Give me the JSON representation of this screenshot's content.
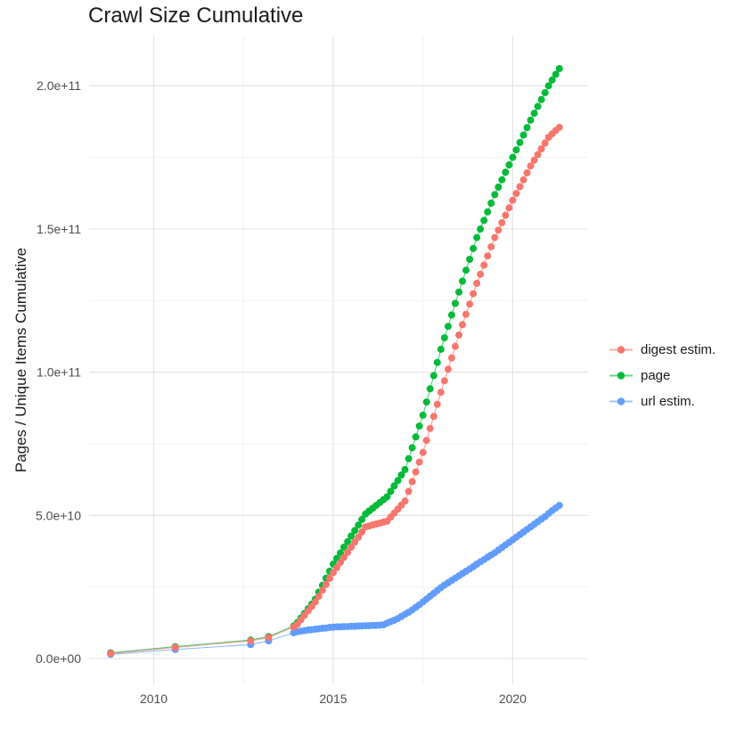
{
  "page": {
    "title": "Crawl Size Cumulative"
  },
  "axes": {
    "y_title": "Pages / Unique Items Cumulative",
    "x_ticks": [
      {
        "label": "2010",
        "value": 2010
      },
      {
        "label": "2015",
        "value": 2015
      },
      {
        "label": "2020",
        "value": 2020
      }
    ],
    "y_ticks": [
      {
        "label": "0.0e+00",
        "value": 0
      },
      {
        "label": "5.0e+10",
        "value": 50
      },
      {
        "label": "1.0e+11",
        "value": 100
      },
      {
        "label": "1.5e+11",
        "value": 150
      },
      {
        "label": "2.0e+11",
        "value": 200
      }
    ],
    "x_minor": [
      2012.5,
      2017.5
    ],
    "y_minor": [
      25,
      75,
      125,
      175
    ]
  },
  "legend": [
    {
      "label": "digest estim.",
      "color": "#F8766D"
    },
    {
      "label": "page",
      "color": "#00BA38"
    },
    {
      "label": "url estim.",
      "color": "#619CFF"
    }
  ],
  "colors": {
    "digest_estim": "#F8766D",
    "page": "#00BA38",
    "url_estim": "#619CFF",
    "grid_major": "#e3e3e3",
    "grid_minor": "#f1f1f1",
    "tick_label": "#4d4d4d"
  },
  "chart_data": {
    "type": "scatter",
    "title": "Crawl Size Cumulative",
    "xlabel": "",
    "ylabel": "Pages / Unique Items Cumulative",
    "x_unit": "year",
    "value_unit": "pages, in billions (1e9)",
    "xlim": [
      2008.2,
      2022.1
    ],
    "ylim_billions": [
      -9,
      217.5
    ],
    "grid": true,
    "legend_position": "right",
    "series": [
      {
        "name": "digest estim.",
        "color": "#F8766D",
        "points": [
          [
            2008.8,
            1.8
          ],
          [
            2010.6,
            3.9
          ],
          [
            2012.7,
            6.2
          ],
          [
            2013.2,
            7.4
          ],
          [
            2013.9,
            11.0
          ],
          [
            2014.0,
            12.0
          ],
          [
            2014.1,
            13.6
          ],
          [
            2014.2,
            15.1
          ],
          [
            2014.3,
            16.7
          ],
          [
            2014.4,
            18.2
          ],
          [
            2014.5,
            19.8
          ],
          [
            2014.6,
            21.8
          ],
          [
            2014.7,
            23.9
          ],
          [
            2014.8,
            25.9
          ],
          [
            2014.9,
            28.0
          ],
          [
            2015.0,
            30.0
          ],
          [
            2015.1,
            31.8
          ],
          [
            2015.2,
            33.6
          ],
          [
            2015.3,
            35.3
          ],
          [
            2015.4,
            37.1
          ],
          [
            2015.5,
            38.9
          ],
          [
            2015.6,
            40.7
          ],
          [
            2015.7,
            42.4
          ],
          [
            2015.8,
            44.2
          ],
          [
            2015.9,
            46.0
          ],
          [
            2016.0,
            46.3
          ],
          [
            2016.1,
            46.7
          ],
          [
            2016.2,
            47.0
          ],
          [
            2016.3,
            47.3
          ],
          [
            2016.4,
            47.7
          ],
          [
            2016.5,
            48.0
          ],
          [
            2016.6,
            49.4
          ],
          [
            2016.7,
            50.8
          ],
          [
            2016.8,
            52.2
          ],
          [
            2016.9,
            53.6
          ],
          [
            2017.0,
            55.0
          ],
          [
            2017.1,
            58.4
          ],
          [
            2017.2,
            61.8
          ],
          [
            2017.3,
            65.2
          ],
          [
            2017.4,
            68.6
          ],
          [
            2017.5,
            72.0
          ],
          [
            2017.6,
            76.2
          ],
          [
            2017.7,
            80.4
          ],
          [
            2017.8,
            84.6
          ],
          [
            2017.9,
            88.8
          ],
          [
            2018.0,
            93.0
          ],
          [
            2018.1,
            97.0
          ],
          [
            2018.2,
            101.0
          ],
          [
            2018.3,
            105.0
          ],
          [
            2018.4,
            109.0
          ],
          [
            2018.5,
            113.0
          ],
          [
            2018.6,
            116.6
          ],
          [
            2018.7,
            120.2
          ],
          [
            2018.8,
            123.8
          ],
          [
            2018.9,
            127.4
          ],
          [
            2019.0,
            131.0
          ],
          [
            2019.1,
            134.2
          ],
          [
            2019.2,
            137.4
          ],
          [
            2019.3,
            140.6
          ],
          [
            2019.4,
            143.8
          ],
          [
            2019.5,
            147.0
          ],
          [
            2019.6,
            149.6
          ],
          [
            2019.7,
            152.2
          ],
          [
            2019.8,
            154.8
          ],
          [
            2019.9,
            157.4
          ],
          [
            2020.0,
            160.0
          ],
          [
            2020.1,
            162.4
          ],
          [
            2020.2,
            164.8
          ],
          [
            2020.3,
            167.2
          ],
          [
            2020.4,
            169.6
          ],
          [
            2020.5,
            172.0
          ],
          [
            2020.6,
            174.0
          ],
          [
            2020.7,
            176.0
          ],
          [
            2020.8,
            178.0
          ],
          [
            2020.9,
            180.0
          ],
          [
            2021.0,
            182.0
          ],
          [
            2021.1,
            183.2
          ],
          [
            2021.2,
            184.4
          ],
          [
            2021.3,
            185.5
          ]
        ]
      },
      {
        "name": "page",
        "color": "#00BA38",
        "points": [
          [
            2008.8,
            2.0
          ],
          [
            2010.6,
            4.2
          ],
          [
            2012.7,
            6.5
          ],
          [
            2013.2,
            7.7
          ],
          [
            2013.9,
            11.4
          ],
          [
            2014.0,
            12.6
          ],
          [
            2014.1,
            14.2
          ],
          [
            2014.2,
            15.8
          ],
          [
            2014.3,
            17.4
          ],
          [
            2014.4,
            19.0
          ],
          [
            2014.5,
            20.7
          ],
          [
            2014.6,
            23.2
          ],
          [
            2014.7,
            25.6
          ],
          [
            2014.8,
            28.1
          ],
          [
            2014.9,
            30.5
          ],
          [
            2015.0,
            33.0
          ],
          [
            2015.1,
            35.0
          ],
          [
            2015.2,
            36.9
          ],
          [
            2015.3,
            38.9
          ],
          [
            2015.4,
            40.8
          ],
          [
            2015.5,
            42.8
          ],
          [
            2015.6,
            44.7
          ],
          [
            2015.7,
            46.6
          ],
          [
            2015.8,
            48.6
          ],
          [
            2015.9,
            50.5
          ],
          [
            2016.0,
            51.5
          ],
          [
            2016.1,
            52.5
          ],
          [
            2016.2,
            53.5
          ],
          [
            2016.3,
            54.5
          ],
          [
            2016.4,
            55.5
          ],
          [
            2016.5,
            56.5
          ],
          [
            2016.6,
            58.4
          ],
          [
            2016.7,
            60.3
          ],
          [
            2016.8,
            62.2
          ],
          [
            2016.9,
            64.1
          ],
          [
            2017.0,
            66.0
          ],
          [
            2017.1,
            69.8
          ],
          [
            2017.2,
            73.6
          ],
          [
            2017.3,
            77.4
          ],
          [
            2017.4,
            81.2
          ],
          [
            2017.5,
            85.0
          ],
          [
            2017.6,
            89.6
          ],
          [
            2017.7,
            94.2
          ],
          [
            2017.8,
            98.8
          ],
          [
            2017.9,
            103.4
          ],
          [
            2018.0,
            108.0
          ],
          [
            2018.1,
            112.0
          ],
          [
            2018.2,
            116.0
          ],
          [
            2018.3,
            120.0
          ],
          [
            2018.4,
            124.0
          ],
          [
            2018.5,
            128.0
          ],
          [
            2018.6,
            131.8
          ],
          [
            2018.7,
            135.6
          ],
          [
            2018.8,
            139.4
          ],
          [
            2018.9,
            143.2
          ],
          [
            2019.0,
            147.0
          ],
          [
            2019.1,
            150.0
          ],
          [
            2019.2,
            153.0
          ],
          [
            2019.3,
            156.0
          ],
          [
            2019.4,
            159.0
          ],
          [
            2019.5,
            162.0
          ],
          [
            2019.6,
            164.6
          ],
          [
            2019.7,
            167.2
          ],
          [
            2019.8,
            169.8
          ],
          [
            2019.9,
            172.4
          ],
          [
            2020.0,
            175.0
          ],
          [
            2020.1,
            177.6
          ],
          [
            2020.2,
            180.2
          ],
          [
            2020.3,
            182.8
          ],
          [
            2020.4,
            185.4
          ],
          [
            2020.5,
            188.0
          ],
          [
            2020.6,
            190.4
          ],
          [
            2020.7,
            192.8
          ],
          [
            2020.8,
            195.2
          ],
          [
            2020.9,
            197.6
          ],
          [
            2021.0,
            200.0
          ],
          [
            2021.1,
            202.0
          ],
          [
            2021.2,
            204.0
          ],
          [
            2021.3,
            206.0
          ]
        ]
      },
      {
        "name": "url estim.",
        "color": "#619CFF",
        "points": [
          [
            2008.8,
            1.5
          ],
          [
            2010.6,
            3.2
          ],
          [
            2012.7,
            4.9
          ],
          [
            2013.2,
            6.2
          ],
          [
            2013.9,
            9.0
          ],
          [
            2014.0,
            9.4
          ],
          [
            2014.1,
            9.6
          ],
          [
            2014.2,
            9.8
          ],
          [
            2014.3,
            10.0
          ],
          [
            2014.4,
            10.1
          ],
          [
            2014.5,
            10.3
          ],
          [
            2014.6,
            10.4
          ],
          [
            2014.7,
            10.6
          ],
          [
            2014.8,
            10.7
          ],
          [
            2014.9,
            10.9
          ],
          [
            2015.0,
            11.0
          ],
          [
            2015.1,
            11.1
          ],
          [
            2015.2,
            11.1
          ],
          [
            2015.3,
            11.2
          ],
          [
            2015.4,
            11.2
          ],
          [
            2015.5,
            11.3
          ],
          [
            2015.6,
            11.3
          ],
          [
            2015.7,
            11.4
          ],
          [
            2015.8,
            11.4
          ],
          [
            2015.9,
            11.5
          ],
          [
            2016.0,
            11.5
          ],
          [
            2016.1,
            11.6
          ],
          [
            2016.2,
            11.6
          ],
          [
            2016.3,
            11.7
          ],
          [
            2016.4,
            11.8
          ],
          [
            2016.5,
            12.4
          ],
          [
            2016.6,
            12.9
          ],
          [
            2016.7,
            13.4
          ],
          [
            2016.8,
            14.0
          ],
          [
            2016.9,
            14.7
          ],
          [
            2017.0,
            15.5
          ],
          [
            2017.1,
            16.2
          ],
          [
            2017.2,
            17.0
          ],
          [
            2017.3,
            17.9
          ],
          [
            2017.4,
            18.8
          ],
          [
            2017.5,
            19.8
          ],
          [
            2017.6,
            20.8
          ],
          [
            2017.7,
            21.8
          ],
          [
            2017.8,
            22.8
          ],
          [
            2017.9,
            23.8
          ],
          [
            2018.0,
            24.8
          ],
          [
            2018.1,
            25.7
          ],
          [
            2018.2,
            26.5
          ],
          [
            2018.3,
            27.3
          ],
          [
            2018.4,
            28.1
          ],
          [
            2018.5,
            28.9
          ],
          [
            2018.6,
            29.7
          ],
          [
            2018.7,
            30.5
          ],
          [
            2018.8,
            31.3
          ],
          [
            2018.9,
            32.1
          ],
          [
            2019.0,
            33.0
          ],
          [
            2019.1,
            33.8
          ],
          [
            2019.2,
            34.6
          ],
          [
            2019.3,
            35.4
          ],
          [
            2019.4,
            36.2
          ],
          [
            2019.5,
            37.0
          ],
          [
            2019.6,
            37.9
          ],
          [
            2019.7,
            38.8
          ],
          [
            2019.8,
            39.7
          ],
          [
            2019.9,
            40.6
          ],
          [
            2020.0,
            41.5
          ],
          [
            2020.1,
            42.4
          ],
          [
            2020.2,
            43.3
          ],
          [
            2020.3,
            44.2
          ],
          [
            2020.4,
            45.1
          ],
          [
            2020.5,
            46.0
          ],
          [
            2020.6,
            46.9
          ],
          [
            2020.7,
            47.8
          ],
          [
            2020.8,
            48.7
          ],
          [
            2020.9,
            49.6
          ],
          [
            2021.0,
            50.7
          ],
          [
            2021.1,
            51.7
          ],
          [
            2021.2,
            52.6
          ],
          [
            2021.3,
            53.5
          ]
        ]
      }
    ]
  }
}
